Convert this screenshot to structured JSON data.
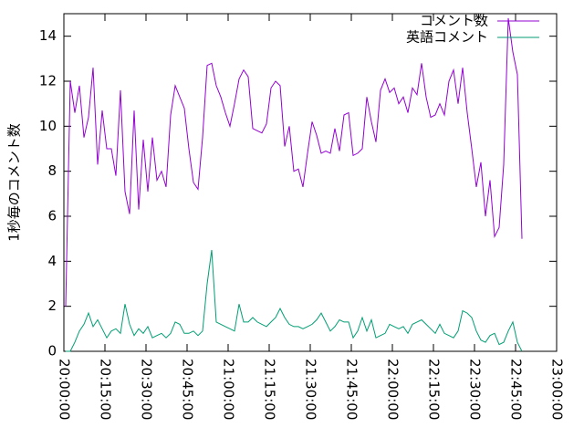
{
  "chart_data": {
    "type": "line",
    "ylabel": "1秒毎のコメント数",
    "xlim": [
      "20:00:00",
      "23:00:00"
    ],
    "xticks": [
      "20:00:00",
      "20:15:00",
      "20:30:00",
      "20:45:00",
      "21:00:00",
      "21:15:00",
      "21:30:00",
      "21:45:00",
      "22:00:00",
      "22:15:00",
      "22:30:00",
      "22:45:00",
      "23:00:00"
    ],
    "ylim": [
      0,
      15
    ],
    "yticks": [
      0,
      2,
      4,
      6,
      8,
      10,
      12,
      14
    ],
    "legend": "top-right",
    "x": [
      "20:00:40",
      "20:02:20",
      "20:04:00",
      "20:05:40",
      "20:07:20",
      "20:09:00",
      "20:10:40",
      "20:12:20",
      "20:14:00",
      "20:15:40",
      "20:17:20",
      "20:19:00",
      "20:20:40",
      "20:22:20",
      "20:24:00",
      "20:25:40",
      "20:27:20",
      "20:29:00",
      "20:30:40",
      "20:32:20",
      "20:34:00",
      "20:35:40",
      "20:37:20",
      "20:39:00",
      "20:40:40",
      "20:42:20",
      "20:44:00",
      "20:45:40",
      "20:47:20",
      "20:49:00",
      "20:50:40",
      "20:52:20",
      "20:54:00",
      "20:55:40",
      "20:57:20",
      "20:59:00",
      "21:00:40",
      "21:02:20",
      "21:04:00",
      "21:05:40",
      "21:07:20",
      "21:09:00",
      "21:10:40",
      "21:12:20",
      "21:14:00",
      "21:15:40",
      "21:17:20",
      "21:19:00",
      "21:20:40",
      "21:22:20",
      "21:24:00",
      "21:25:40",
      "21:27:20",
      "21:29:00",
      "21:30:40",
      "21:32:20",
      "21:34:00",
      "21:35:40",
      "21:37:20",
      "21:39:00",
      "21:40:40",
      "21:42:20",
      "21:44:00",
      "21:45:40",
      "21:47:20",
      "21:49:00",
      "21:50:40",
      "21:52:20",
      "21:54:00",
      "21:55:40",
      "21:57:20",
      "21:59:00",
      "22:00:40",
      "22:02:20",
      "22:04:00",
      "22:05:40",
      "22:07:20",
      "22:09:00",
      "22:10:40",
      "22:12:20",
      "22:14:00",
      "22:15:40",
      "22:17:20",
      "22:19:00",
      "22:20:40",
      "22:22:20",
      "22:24:00",
      "22:25:40",
      "22:27:20",
      "22:29:00",
      "22:30:40",
      "22:32:20",
      "22:34:00",
      "22:35:40",
      "22:37:20",
      "22:39:00",
      "22:40:40",
      "22:42:20",
      "22:44:00",
      "22:45:40",
      "22:47:20"
    ],
    "series": [
      {
        "name": "コメント数",
        "color": "#9400d3",
        "values": [
          2.0,
          12.0,
          10.6,
          11.8,
          9.5,
          10.4,
          12.6,
          8.3,
          10.7,
          9.0,
          9.0,
          7.8,
          11.6,
          7.1,
          6.1,
          10.7,
          6.3,
          9.4,
          7.1,
          9.5,
          7.6,
          8.0,
          7.3,
          10.5,
          11.8,
          11.3,
          10.8,
          9.0,
          7.5,
          7.2,
          9.5,
          12.7,
          12.8,
          11.8,
          11.3,
          10.6,
          10.0,
          11.0,
          12.1,
          12.5,
          12.2,
          9.9,
          9.8,
          9.7,
          10.1,
          11.7,
          12.0,
          11.8,
          9.1,
          10.0,
          8.0,
          8.1,
          7.3,
          8.8,
          10.2,
          9.6,
          8.8,
          8.9,
          8.8,
          9.9,
          8.9,
          10.5,
          10.6,
          8.7,
          8.8,
          9.0,
          11.3,
          10.2,
          9.3,
          11.6,
          12.1,
          11.5,
          11.7,
          11.0,
          11.3,
          10.6,
          11.7,
          11.4,
          12.8,
          11.3,
          10.4,
          10.5,
          11.0,
          10.5,
          12.0,
          12.5,
          11.0,
          12.6,
          10.6,
          9.0,
          7.3,
          8.4,
          6.0,
          7.6,
          5.1,
          5.5,
          8.3,
          14.8,
          13.3,
          12.3,
          5.0
        ]
      },
      {
        "name": "英語コメント",
        "color": "#009e73",
        "values": [
          0,
          0,
          0.4,
          0.9,
          1.2,
          1.7,
          1.1,
          1.4,
          1.0,
          0.6,
          0.9,
          1.0,
          0.8,
          2.1,
          1.2,
          0.7,
          1.0,
          0.8,
          1.1,
          0.6,
          0.7,
          0.8,
          0.6,
          0.8,
          1.3,
          1.2,
          0.8,
          0.8,
          0.9,
          0.7,
          0.9,
          3.0,
          4.5,
          1.3,
          1.2,
          1.1,
          1.0,
          0.9,
          2.1,
          1.3,
          1.3,
          1.5,
          1.3,
          1.2,
          1.1,
          1.3,
          1.5,
          1.9,
          1.5,
          1.2,
          1.1,
          1.1,
          1.0,
          1.1,
          1.2,
          1.4,
          1.7,
          1.3,
          0.9,
          1.1,
          1.4,
          1.3,
          1.3,
          0.6,
          0.9,
          1.5,
          0.9,
          1.4,
          0.6,
          0.7,
          0.8,
          1.2,
          1.1,
          1.0,
          1.1,
          0.8,
          1.2,
          1.3,
          1.4,
          1.2,
          1.0,
          0.8,
          1.2,
          0.8,
          0.7,
          0.6,
          0.9,
          1.8,
          1.7,
          1.5,
          0.9,
          0.5,
          0.4,
          0.7,
          0.8,
          0.3,
          0.4,
          0.9,
          1.3,
          0.4,
          0.0
        ]
      }
    ]
  }
}
